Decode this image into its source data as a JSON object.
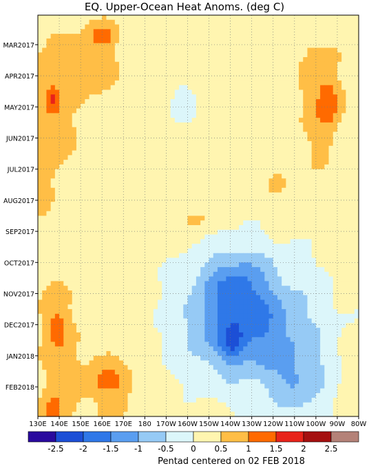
{
  "chart_data": {
    "type": "heatmap",
    "title": "EQ. Upper-Ocean Heat Anoms. (deg C)",
    "xlabel": "",
    "ylabel": "",
    "footer": "Pentad centered on 02 FEB 2018",
    "x_ticks": [
      "130E",
      "140E",
      "150E",
      "160E",
      "170E",
      "180",
      "170W",
      "160W",
      "150W",
      "140W",
      "130W",
      "120W",
      "110W",
      "100W",
      "90W",
      "80W"
    ],
    "y_ticks": [
      "MAR2017",
      "APR2017",
      "MAY2017",
      "JUN2017",
      "JUL2017",
      "AUG2017",
      "SEP2017",
      "OCT2017",
      "NOV2017",
      "DEC2017",
      "JAN2018",
      "FEB2018"
    ],
    "grid": true,
    "legend": "bottom",
    "colorbar": {
      "colors": [
        "#2a0a9e",
        "#1c4fd6",
        "#2f78e8",
        "#5a9ef0",
        "#96caf5",
        "#dcf6fa",
        "#fff5b0",
        "#ffbe46",
        "#ff6a00",
        "#e8231a",
        "#a51010",
        "#b48278"
      ],
      "labels": [
        "-2.5",
        "-2",
        "-1.5",
        "-1",
        "-0.5",
        "0",
        "0.5",
        "1",
        "1.5",
        "2",
        "2.5"
      ],
      "bounds": [
        -3,
        -2.5,
        -2,
        -1.5,
        -1,
        -0.5,
        0,
        0.5,
        1,
        1.5,
        2,
        2.5,
        3
      ]
    },
    "anomaly_features": [
      {
        "lon_center": 135,
        "month_center": 2.5,
        "lon_radius": 10,
        "month_radius": 2.5,
        "value": 0.9
      },
      {
        "lon_center": 153,
        "month_center": 0.8,
        "lon_radius": 14,
        "month_radius": 1.2,
        "value": 0.8
      },
      {
        "lon_center": 160,
        "month_center": -0.3,
        "lon_radius": 6,
        "month_radius": 0.4,
        "value": 1.2
      },
      {
        "lon_center": 137,
        "month_center": 1.8,
        "lon_radius": 3,
        "month_radius": 0.4,
        "value": 1.1
      },
      {
        "lon_center": 262,
        "month_center": 1.5,
        "lon_radius": 9,
        "month_radius": 2.2,
        "value": 0.8
      },
      {
        "lon_center": 266,
        "month_center": 1.9,
        "lon_radius": 5,
        "month_radius": 0.8,
        "value": 1.2
      },
      {
        "lon_center": 205,
        "month_center": 5.6,
        "lon_radius": 7,
        "month_radius": 0.5,
        "value": 0.7
      },
      {
        "lon_center": 242,
        "month_center": 4.5,
        "lon_radius": 6,
        "month_radius": 0.4,
        "value": 0.6
      },
      {
        "lon_center": 197,
        "month_center": 1.9,
        "lon_radius": 9,
        "month_radius": 0.9,
        "value": -0.2
      },
      {
        "lon_center": 167,
        "month_center": 5.0,
        "lon_radius": 14,
        "month_radius": 2.5,
        "value": 0.1
      },
      {
        "lon_center": 230,
        "month_center": 8.9,
        "lon_radius": 38,
        "month_radius": 2.4,
        "value": -0.95
      },
      {
        "lon_center": 222,
        "month_center": 7.6,
        "lon_radius": 16,
        "month_radius": 1.0,
        "value": -0.7
      },
      {
        "lon_center": 225,
        "month_center": 9.1,
        "lon_radius": 22,
        "month_radius": 1.3,
        "value": -0.7
      },
      {
        "lon_center": 252,
        "month_center": 10.9,
        "lon_radius": 14,
        "month_radius": 1.2,
        "value": -0.7
      },
      {
        "lon_center": 221,
        "month_center": 9.6,
        "lon_radius": 5,
        "month_radius": 0.5,
        "value": -0.7
      },
      {
        "lon_center": 240,
        "month_center": 7.7,
        "lon_radius": 12,
        "month_radius": 0.5,
        "value": 0.4
      },
      {
        "lon_center": 140,
        "month_center": 9.8,
        "lon_radius": 9,
        "month_radius": 2.3,
        "value": 0.9
      },
      {
        "lon_center": 139,
        "month_center": 9.0,
        "lon_radius": 4,
        "month_radius": 0.5,
        "value": 0.8
      },
      {
        "lon_center": 162,
        "month_center": 10.9,
        "lon_radius": 14,
        "month_radius": 1.1,
        "value": 0.8
      },
      {
        "lon_center": 165,
        "month_center": 10.8,
        "lon_radius": 9,
        "month_radius": 0.4,
        "value": 0.9
      },
      {
        "lon_center": 137,
        "month_center": 11.8,
        "lon_radius": 5,
        "month_radius": 0.5,
        "value": 1.1
      }
    ],
    "background_value": 0.3
  }
}
